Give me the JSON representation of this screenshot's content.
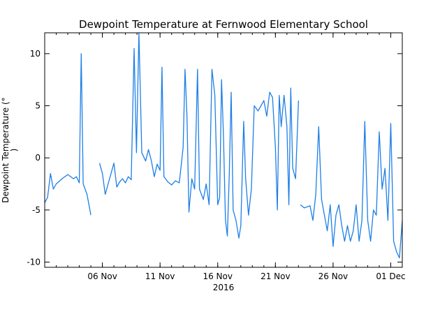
{
  "chart_data": {
    "type": "line",
    "title": "Dewpoint Temperature at Fernwood Elementary School",
    "ylabel_lines": [
      "Dewpoint Temperature (°",
      ")"
    ],
    "x_year_label": "2016",
    "xlim": [
      "2016-11-01",
      "2016-12-02"
    ],
    "ylim": [
      -10.5,
      12
    ],
    "y_ticks": [
      -10,
      -5,
      0,
      5,
      10
    ],
    "x_ticks": [
      {
        "date": "2016-11-06",
        "label": "06 Nov"
      },
      {
        "date": "2016-11-11",
        "label": "11 Nov"
      },
      {
        "date": "2016-11-16",
        "label": "16 Nov"
      },
      {
        "date": "2016-11-21",
        "label": "21 Nov"
      },
      {
        "date": "2016-11-26",
        "label": "26 Nov"
      },
      {
        "date": "2016-12-01",
        "label": "01 Dec"
      }
    ],
    "line_color": "#1e7fe6",
    "series": [
      {
        "segments": [
          [
            [
              "2016-11-01 00:00",
              -4.3
            ],
            [
              "2016-11-01 06:00",
              -3.8
            ],
            [
              "2016-11-01 12:00",
              -1.5
            ],
            [
              "2016-11-01 18:00",
              -3.0
            ],
            [
              "2016-11-02 00:00",
              -2.5
            ],
            [
              "2016-11-02 12:00",
              -2.0
            ],
            [
              "2016-11-03 00:00",
              -1.6
            ],
            [
              "2016-11-03 12:00",
              -2.0
            ],
            [
              "2016-11-03 18:00",
              -1.8
            ],
            [
              "2016-11-04 00:00",
              -2.4
            ],
            [
              "2016-11-04 04:00",
              10.0
            ],
            [
              "2016-11-04 08:00",
              -2.5
            ],
            [
              "2016-11-04 16:00",
              -3.5
            ],
            [
              "2016-11-05 00:00",
              -5.5
            ]
          ],
          [
            [
              "2016-11-05 18:00",
              -0.5
            ],
            [
              "2016-11-06 00:00",
              -1.5
            ],
            [
              "2016-11-06 06:00",
              -3.5
            ],
            [
              "2016-11-06 12:00",
              -2.5
            ],
            [
              "2016-11-06 18:00",
              -1.5
            ],
            [
              "2016-11-07 00:00",
              -0.5
            ],
            [
              "2016-11-07 06:00",
              -2.8
            ],
            [
              "2016-11-07 12:00",
              -2.3
            ],
            [
              "2016-11-07 18:00",
              -2.0
            ],
            [
              "2016-11-08 00:00",
              -2.4
            ],
            [
              "2016-11-08 06:00",
              -1.8
            ],
            [
              "2016-11-08 12:00",
              -2.1
            ],
            [
              "2016-11-08 18:00",
              10.5
            ],
            [
              "2016-11-08 23:00",
              0.5
            ],
            [
              "2016-11-09 04:00",
              12.0
            ],
            [
              "2016-11-09 10:00",
              0.5
            ],
            [
              "2016-11-09 18:00",
              -0.3
            ],
            [
              "2016-11-10 00:00",
              0.8
            ],
            [
              "2016-11-10 06:00",
              -0.3
            ],
            [
              "2016-11-10 12:00",
              -1.8
            ],
            [
              "2016-11-10 18:00",
              -0.6
            ],
            [
              "2016-11-11 00:00",
              -1.2
            ],
            [
              "2016-11-11 04:00",
              8.7
            ],
            [
              "2016-11-11 08:00",
              -1.8
            ],
            [
              "2016-11-11 16:00",
              -2.3
            ],
            [
              "2016-11-12 00:00",
              -2.6
            ],
            [
              "2016-11-12 08:00",
              -2.2
            ],
            [
              "2016-11-12 16:00",
              -2.4
            ],
            [
              "2016-11-13 00:00",
              1.0
            ],
            [
              "2016-11-13 04:00",
              8.5
            ],
            [
              "2016-11-13 08:00",
              4.0
            ],
            [
              "2016-11-13 12:00",
              -5.2
            ],
            [
              "2016-11-13 18:00",
              -2.0
            ],
            [
              "2016-11-14 00:00",
              -3.0
            ],
            [
              "2016-11-14 06:00",
              8.5
            ],
            [
              "2016-11-14 10:00",
              -3.0
            ],
            [
              "2016-11-14 18:00",
              -4.0
            ],
            [
              "2016-11-15 00:00",
              -2.5
            ],
            [
              "2016-11-15 06:00",
              -4.5
            ],
            [
              "2016-11-15 12:00",
              8.5
            ],
            [
              "2016-11-15 18:00",
              6.0
            ],
            [
              "2016-11-16 00:00",
              -4.5
            ],
            [
              "2016-11-16 04:00",
              -3.8
            ],
            [
              "2016-11-16 08:00",
              7.5
            ],
            [
              "2016-11-16 12:00",
              2.0
            ],
            [
              "2016-11-16 16:00",
              -6.0
            ],
            [
              "2016-11-16 20:00",
              -7.5
            ],
            [
              "2016-11-17 00:00",
              -1.5
            ],
            [
              "2016-11-17 04:00",
              6.3
            ],
            [
              "2016-11-17 08:00",
              -5.0
            ],
            [
              "2016-11-17 14:00",
              -6.0
            ],
            [
              "2016-11-17 20:00",
              -7.7
            ],
            [
              "2016-11-18 00:00",
              -6.5
            ],
            [
              "2016-11-18 06:00",
              3.5
            ],
            [
              "2016-11-18 10:00",
              -2.0
            ],
            [
              "2016-11-18 16:00",
              -5.5
            ],
            [
              "2016-11-18 22:00",
              -3.0
            ],
            [
              "2016-11-19 04:00",
              5.0
            ],
            [
              "2016-11-19 12:00",
              4.5
            ],
            [
              "2016-11-20 00:00",
              5.5
            ],
            [
              "2016-11-20 06:00",
              4.0
            ],
            [
              "2016-11-20 12:00",
              6.3
            ],
            [
              "2016-11-20 18:00",
              5.8
            ],
            [
              "2016-11-21 00:00",
              1.0
            ],
            [
              "2016-11-21 04:00",
              -5.0
            ],
            [
              "2016-11-21 08:00",
              6.0
            ],
            [
              "2016-11-21 12:00",
              3.0
            ],
            [
              "2016-11-21 18:00",
              6.0
            ],
            [
              "2016-11-22 00:00",
              3.0
            ],
            [
              "2016-11-22 04:00",
              -4.5
            ],
            [
              "2016-11-22 08:00",
              6.7
            ],
            [
              "2016-11-22 12:00",
              -1.0
            ],
            [
              "2016-11-22 18:00",
              -2.0
            ],
            [
              "2016-11-23 00:00",
              5.5
            ]
          ],
          [
            [
              "2016-11-23 04:00",
              -4.5
            ],
            [
              "2016-11-23 12:00",
              -4.8
            ],
            [
              "2016-11-24 00:00",
              -4.6
            ],
            [
              "2016-11-24 06:00",
              -6.0
            ],
            [
              "2016-11-24 12:00",
              -3.5
            ],
            [
              "2016-11-24 18:00",
              3.0
            ],
            [
              "2016-11-25 00:00",
              -4.0
            ],
            [
              "2016-11-25 06:00",
              -5.5
            ],
            [
              "2016-11-25 12:00",
              -7.0
            ],
            [
              "2016-11-25 18:00",
              -4.5
            ],
            [
              "2016-11-26 00:00",
              -8.5
            ],
            [
              "2016-11-26 06:00",
              -5.5
            ],
            [
              "2016-11-26 12:00",
              -4.5
            ],
            [
              "2016-11-26 18:00",
              -6.5
            ],
            [
              "2016-11-27 00:00",
              -8.0
            ],
            [
              "2016-11-27 06:00",
              -6.5
            ],
            [
              "2016-11-27 12:00",
              -8.0
            ],
            [
              "2016-11-27 18:00",
              -7.0
            ],
            [
              "2016-11-28 00:00",
              -4.5
            ],
            [
              "2016-11-28 06:00",
              -8.0
            ],
            [
              "2016-11-28 12:00",
              -6.0
            ],
            [
              "2016-11-28 18:00",
              3.5
            ],
            [
              "2016-11-29 00:00",
              -6.0
            ],
            [
              "2016-11-29 06:00",
              -8.0
            ],
            [
              "2016-11-29 12:00",
              -5.0
            ],
            [
              "2016-11-29 18:00",
              -5.5
            ],
            [
              "2016-11-30 00:00",
              2.5
            ],
            [
              "2016-11-30 06:00",
              -3.0
            ],
            [
              "2016-11-30 12:00",
              -1.0
            ],
            [
              "2016-11-30 18:00",
              -6.0
            ],
            [
              "2016-12-01 00:00",
              3.3
            ],
            [
              "2016-12-01 06:00",
              -8.0
            ],
            [
              "2016-12-01 12:00",
              -9.0
            ],
            [
              "2016-12-01 18:00",
              -9.6
            ],
            [
              "2016-12-02 00:00",
              -6.0
            ]
          ]
        ]
      }
    ]
  }
}
